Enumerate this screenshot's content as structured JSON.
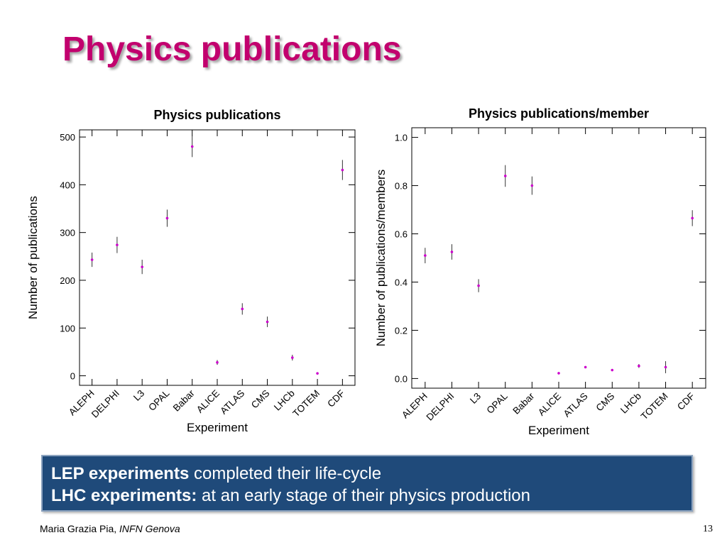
{
  "slide": {
    "title": "Physics publications",
    "box": {
      "line1_bold": "LEP experiments",
      "line1_rest": " completed their life-cycle",
      "line2_bold": "LHC experiments:",
      "line2_rest": " at an early stage of their physics production",
      "bg_color": "#1f4a7a"
    },
    "footer": {
      "author": "Maria Grazia Pia, ",
      "affiliation": "INFN Genova",
      "page": "13"
    },
    "title_color": "#c2006e"
  },
  "chart_data": [
    {
      "type": "scatter",
      "title": "Physics publications",
      "xlabel": "Experiment",
      "ylabel": "Number of publications",
      "categories": [
        "ALEPH",
        "DELPHI",
        "L3",
        "OPAL",
        "Babar",
        "ALICE",
        "ATLAS",
        "CMS",
        "LHCb",
        "TOTEM",
        "CDF"
      ],
      "values": [
        243,
        274,
        228,
        330,
        480,
        28,
        140,
        113,
        38,
        5,
        431
      ],
      "errors": [
        15,
        17,
        15,
        18,
        22,
        5,
        12,
        11,
        6,
        2,
        21
      ],
      "ylim": [
        -20,
        515
      ],
      "yticks": [
        0,
        100,
        200,
        300,
        400,
        500
      ],
      "tick_format": "int",
      "marker_color": "#cc00cc",
      "errorbar_color": "#333333",
      "grid": false
    },
    {
      "type": "scatter",
      "title": "Physics publications/member",
      "xlabel": "Experiment",
      "ylabel": "Number of publications/members",
      "categories": [
        "ALEPH",
        "DELPHI",
        "L3",
        "OPAL",
        "Babar",
        "ALICE",
        "ATLAS",
        "CMS",
        "LHCb",
        "TOTEM",
        "CDF"
      ],
      "values": [
        0.51,
        0.525,
        0.385,
        0.84,
        0.8,
        0.022,
        0.047,
        0.035,
        0.052,
        0.047,
        0.665
      ],
      "errors": [
        0.032,
        0.032,
        0.027,
        0.045,
        0.038,
        0.004,
        0.004,
        0.003,
        0.008,
        0.025,
        0.033
      ],
      "ylim": [
        -0.04,
        1.04
      ],
      "yticks": [
        0.0,
        0.2,
        0.4,
        0.6,
        0.8,
        1.0
      ],
      "tick_format": "one_decimal",
      "marker_color": "#cc00cc",
      "errorbar_color": "#333333",
      "grid": false
    }
  ]
}
